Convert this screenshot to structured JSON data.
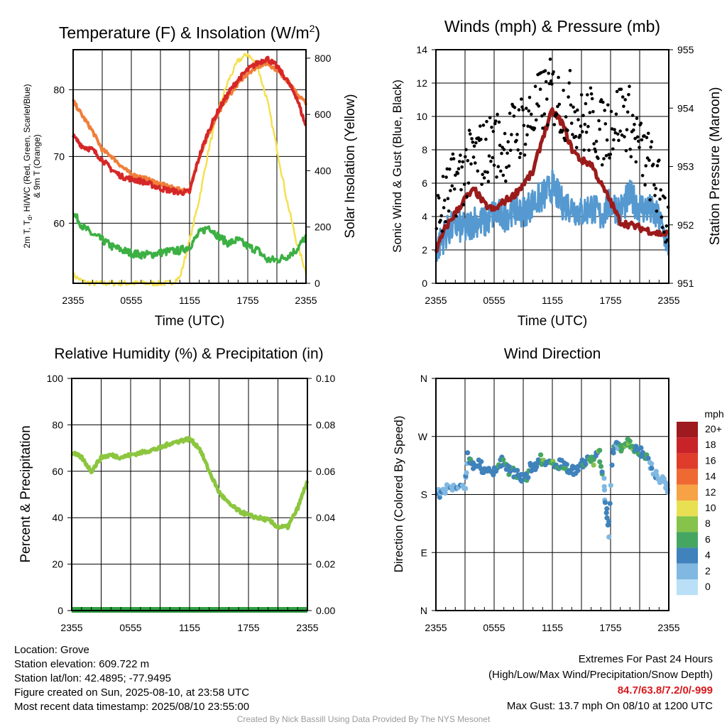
{
  "panels": {
    "temp": {
      "title_prefix": "Temperature (F) & Insolation (W/m",
      "title_sup": "2",
      "title_suffix": ")",
      "ylabel_left_line1": "2m T, T",
      "ylabel_left_sub": "d",
      "ylabel_left_line1_rest": ", HI/WC (Red, Green, Scarlet/Blue)",
      "ylabel_left_line2": "& 9m T (Orange)",
      "ylabel_right": "Solar Insolation (Yellow)",
      "xlabel": "Time (UTC)",
      "y_ticks": [
        "60",
        "70",
        "80"
      ],
      "y2_ticks": [
        "0",
        "200",
        "400",
        "600",
        "800"
      ],
      "x_ticks": [
        "2355",
        "0555",
        "1155",
        "1755",
        "2355"
      ]
    },
    "wind": {
      "title": "Winds (mph) & Pressure (mb)",
      "ylabel_left": "Sonic Wind & Gust (Blue, Black)",
      "ylabel_right": "Station Pressure (Maroon)",
      "xlabel": "Time (UTC)",
      "y_ticks": [
        "0",
        "2",
        "4",
        "6",
        "8",
        "10",
        "12",
        "14"
      ],
      "y2_ticks": [
        "951",
        "952",
        "953",
        "954",
        "955"
      ],
      "x_ticks": [
        "2355",
        "0555",
        "1155",
        "1755",
        "2355"
      ]
    },
    "rh": {
      "title": "Relative Humidity (%) & Precipitation (in)",
      "ylabel_left": "Percent & Precipitation",
      "y_ticks": [
        "0",
        "20",
        "40",
        "60",
        "80",
        "100"
      ],
      "y2_ticks": [
        "0.00",
        "0.02",
        "0.04",
        "0.06",
        "0.08",
        "0.10"
      ],
      "x_ticks": [
        "2355",
        "0555",
        "1155",
        "1755",
        "2355"
      ]
    },
    "wdir": {
      "title": "Wind Direction",
      "ylabel_left": "Direction (Colored By Speed)",
      "y_ticks": [
        "N",
        "E",
        "S",
        "W",
        "N"
      ],
      "x_ticks": [
        "2355",
        "0555",
        "1155",
        "1755",
        "2355"
      ],
      "legend_title": "mph",
      "legend_labels": [
        "20+",
        "18",
        "16",
        "14",
        "12",
        "10",
        "8",
        "6",
        "4",
        "2",
        "0"
      ],
      "legend_colors": [
        "#9e1a1e",
        "#c9232a",
        "#e03c2c",
        "#ee6a32",
        "#f6a245",
        "#e8e052",
        "#86c34a",
        "#45a662",
        "#3f82bc",
        "#80b8e2",
        "#b9e0f6"
      ]
    }
  },
  "colors": {
    "red": "#d62728",
    "orange": "#f07f3a",
    "green": "#3cb043",
    "yellow": "#f5e050",
    "blue_wind": "#5599d0",
    "maroon": "#9b1b1b",
    "rh_green": "#8cc63f",
    "precip_green": "#2ea043"
  },
  "chart_data": [
    {
      "type": "line",
      "title": "Temperature (F) & Insolation (W/m2)",
      "x_hours": [
        0,
        1,
        2,
        3,
        4,
        5,
        6,
        7,
        8,
        9,
        10,
        11,
        12,
        13,
        14,
        15,
        16,
        17,
        18,
        19,
        20,
        21,
        22,
        23,
        24
      ],
      "x_tick_hours": [
        0,
        6,
        12,
        18,
        24
      ],
      "ylim": [
        51,
        86
      ],
      "y2lim": [
        0,
        830
      ],
      "series": [
        {
          "name": "2m T (Red)",
          "axis": "left",
          "values": [
            73,
            71.5,
            71,
            69.5,
            68,
            67,
            66.6,
            66.3,
            65.8,
            65.2,
            64.9,
            64.6,
            64.7,
            70,
            74,
            77,
            79.5,
            81.5,
            83,
            84,
            84.7,
            83.5,
            81.5,
            79,
            74.5
          ]
        },
        {
          "name": "9m T (Orange)",
          "axis": "left",
          "values": [
            78.3,
            76,
            73.8,
            71,
            70,
            68.5,
            67.3,
            66.9,
            66.4,
            65.9,
            65.4,
            65.0,
            64.9,
            70,
            73.5,
            76.5,
            79,
            81,
            82.5,
            83.5,
            84,
            83,
            81.5,
            79.5,
            78
          ]
        },
        {
          "name": "Td (Green)",
          "axis": "left",
          "values": [
            61.5,
            59.5,
            58.3,
            57.5,
            56.5,
            56,
            55.5,
            55.3,
            55.3,
            55.6,
            55.8,
            55.9,
            56.5,
            58.5,
            59.5,
            58,
            57,
            57.5,
            56.5,
            56,
            54.5,
            54.5,
            55,
            56,
            58
          ]
        },
        {
          "name": "Solar Insolation (Yellow)",
          "axis": "right",
          "values": [
            30,
            5,
            0,
            0,
            0,
            0,
            0,
            0,
            0,
            0,
            0,
            20,
            150,
            300,
            480,
            620,
            720,
            790,
            815,
            770,
            650,
            480,
            300,
            150,
            40
          ]
        }
      ]
    },
    {
      "type": "scatter",
      "title": "Winds (mph) & Pressure (mb)",
      "x_hours": [
        0,
        1,
        2,
        3,
        4,
        5,
        6,
        7,
        8,
        9,
        10,
        11,
        12,
        13,
        14,
        15,
        16,
        17,
        18,
        19,
        20,
        21,
        22,
        23,
        24
      ],
      "x_tick_hours": [
        0,
        6,
        12,
        18,
        24
      ],
      "ylim": [
        0,
        14
      ],
      "y2lim": [
        951,
        955
      ],
      "series": [
        {
          "name": "Sonic Wind (Blue)",
          "axis": "left",
          "values": [
            2.0,
            3.0,
            3.5,
            3.2,
            3.8,
            3.6,
            4.2,
            4.0,
            4.5,
            4.3,
            4.8,
            5.2,
            5.8,
            4.8,
            4.6,
            4.2,
            4.6,
            4.0,
            4.8,
            4.4,
            5.2,
            4.6,
            4.4,
            3.8,
            2.2
          ]
        },
        {
          "name": "Gust (Black)",
          "axis": "left",
          "values": [
            3.5,
            5.0,
            6.0,
            6.8,
            7.5,
            7.8,
            8.5,
            8.0,
            9.0,
            9.5,
            10.0,
            11.0,
            11.5,
            10.5,
            10.8,
            9.5,
            9.8,
            9.0,
            9.5,
            10.2,
            9.8,
            8.0,
            7.0,
            5.5,
            3.5
          ]
        },
        {
          "name": "Station Pressure (Maroon)",
          "axis": "right",
          "values": [
            951.55,
            951.95,
            952.2,
            952.45,
            952.6,
            952.35,
            952.25,
            952.4,
            952.5,
            952.7,
            952.9,
            953.5,
            953.95,
            953.75,
            953.3,
            953.1,
            953.05,
            952.7,
            952.4,
            952.05,
            952.0,
            951.95,
            951.9,
            951.85,
            951.85
          ]
        }
      ]
    },
    {
      "type": "line",
      "title": "Relative Humidity (%) & Precipitation (in)",
      "x_hours": [
        0,
        1,
        2,
        3,
        4,
        5,
        6,
        7,
        8,
        9,
        10,
        11,
        12,
        13,
        14,
        15,
        16,
        17,
        18,
        19,
        20,
        21,
        22,
        23,
        24
      ],
      "x_tick_hours": [
        0,
        6,
        12,
        18,
        24
      ],
      "ylim": [
        0,
        100
      ],
      "y2lim": [
        0,
        0.1
      ],
      "series": [
        {
          "name": "Relative Humidity",
          "axis": "left",
          "values": [
            68,
            66,
            60,
            66,
            67,
            66,
            67,
            68,
            69,
            70,
            72,
            73,
            74,
            70,
            60,
            51,
            46,
            43,
            41,
            40,
            39,
            36,
            36,
            44,
            56
          ]
        },
        {
          "name": "Precipitation",
          "axis": "right",
          "values": [
            0,
            0,
            0,
            0,
            0,
            0,
            0,
            0,
            0,
            0,
            0,
            0,
            0,
            0,
            0,
            0,
            0,
            0,
            0,
            0,
            0,
            0,
            0,
            0,
            0
          ]
        }
      ]
    },
    {
      "type": "scatter",
      "title": "Wind Direction",
      "x_tick_hours": [
        0,
        6,
        12,
        18,
        24
      ],
      "ylim": [
        0,
        360
      ],
      "points": [
        {
          "h": 0.2,
          "d": 178,
          "s": 2.5
        },
        {
          "h": 0.5,
          "d": 185,
          "s": 2.5
        },
        {
          "h": 1.0,
          "d": 190,
          "s": 2.5
        },
        {
          "h": 1.5,
          "d": 192,
          "s": 2.5
        },
        {
          "h": 2.0,
          "d": 188,
          "s": 2.5
        },
        {
          "h": 2.5,
          "d": 195,
          "s": 2.5
        },
        {
          "h": 3.0,
          "d": 190,
          "s": 2.5
        },
        {
          "h": 3.3,
          "d": 240,
          "s": 4.5
        },
        {
          "h": 3.8,
          "d": 225,
          "s": 4.5
        },
        {
          "h": 4.3,
          "d": 230,
          "s": 4.5
        },
        {
          "h": 4.8,
          "d": 220,
          "s": 4.5
        },
        {
          "h": 5.3,
          "d": 215,
          "s": 4.5
        },
        {
          "h": 5.8,
          "d": 212,
          "s": 4.5
        },
        {
          "h": 6.3,
          "d": 225,
          "s": 4.5
        },
        {
          "h": 6.8,
          "d": 232,
          "s": 4.5
        },
        {
          "h": 7.3,
          "d": 220,
          "s": 4.5
        },
        {
          "h": 7.8,
          "d": 215,
          "s": 4.5
        },
        {
          "h": 8.3,
          "d": 212,
          "s": 4.5
        },
        {
          "h": 8.8,
          "d": 208,
          "s": 4.5
        },
        {
          "h": 9.3,
          "d": 205,
          "s": 4.5
        },
        {
          "h": 9.8,
          "d": 222,
          "s": 4.5
        },
        {
          "h": 10.3,
          "d": 225,
          "s": 4.5
        },
        {
          "h": 10.8,
          "d": 235,
          "s": 6.5
        },
        {
          "h": 11.3,
          "d": 228,
          "s": 4.5
        },
        {
          "h": 11.8,
          "d": 232,
          "s": 6.5
        },
        {
          "h": 12.3,
          "d": 222,
          "s": 4.5
        },
        {
          "h": 12.8,
          "d": 230,
          "s": 4.5
        },
        {
          "h": 13.3,
          "d": 225,
          "s": 4.5
        },
        {
          "h": 13.8,
          "d": 215,
          "s": 4.5
        },
        {
          "h": 14.3,
          "d": 218,
          "s": 4.5
        },
        {
          "h": 14.8,
          "d": 225,
          "s": 4.5
        },
        {
          "h": 15.3,
          "d": 230,
          "s": 4.5
        },
        {
          "h": 15.8,
          "d": 238,
          "s": 6.5
        },
        {
          "h": 16.3,
          "d": 228,
          "s": 4.5
        },
        {
          "h": 16.8,
          "d": 250,
          "s": 6.5
        },
        {
          "h": 17.2,
          "d": 210,
          "s": 2.5
        },
        {
          "h": 17.5,
          "d": 170,
          "s": 4.5
        },
        {
          "h": 17.8,
          "d": 120,
          "s": 2.5
        },
        {
          "h": 18.2,
          "d": 245,
          "s": 4.5
        },
        {
          "h": 18.6,
          "d": 262,
          "s": 2.5
        },
        {
          "h": 19.0,
          "d": 250,
          "s": 6.5
        },
        {
          "h": 19.4,
          "d": 258,
          "s": 6.5
        },
        {
          "h": 19.8,
          "d": 262,
          "s": 6.5
        },
        {
          "h": 20.2,
          "d": 255,
          "s": 6.5
        },
        {
          "h": 20.6,
          "d": 250,
          "s": 4.5
        },
        {
          "h": 21.0,
          "d": 248,
          "s": 4.5
        },
        {
          "h": 21.5,
          "d": 240,
          "s": 4.5
        },
        {
          "h": 22.0,
          "d": 230,
          "s": 2.5
        },
        {
          "h": 22.5,
          "d": 215,
          "s": 2.5
        },
        {
          "h": 23.0,
          "d": 205,
          "s": 2.5
        },
        {
          "h": 23.5,
          "d": 200,
          "s": 2.5
        },
        {
          "h": 23.9,
          "d": 190,
          "s": 2.5
        }
      ]
    }
  ],
  "footer": {
    "location": "Location: Grove",
    "elevation": "Station elevation: 609.722 m",
    "latlon": "Station lat/lon: 42.4895; -77.9495",
    "created": "Figure created on Sun, 2025-08-10, at 23:58 UTC",
    "recent": "Most recent data timestamp: 2025/08/10 23:55:00",
    "extremes_title": "Extremes For Past 24 Hours",
    "extremes_sub": "(High/Low/Max Wind/Precipitation/Snow Depth)",
    "extremes_values": "84.7/63.8/7.2/0/-999",
    "max_gust": "Max Gust: 13.7 mph On 08/10 at 1200 UTC",
    "credit": "Created By Nick Bassill Using Data Provided By The NYS Mesonet"
  }
}
